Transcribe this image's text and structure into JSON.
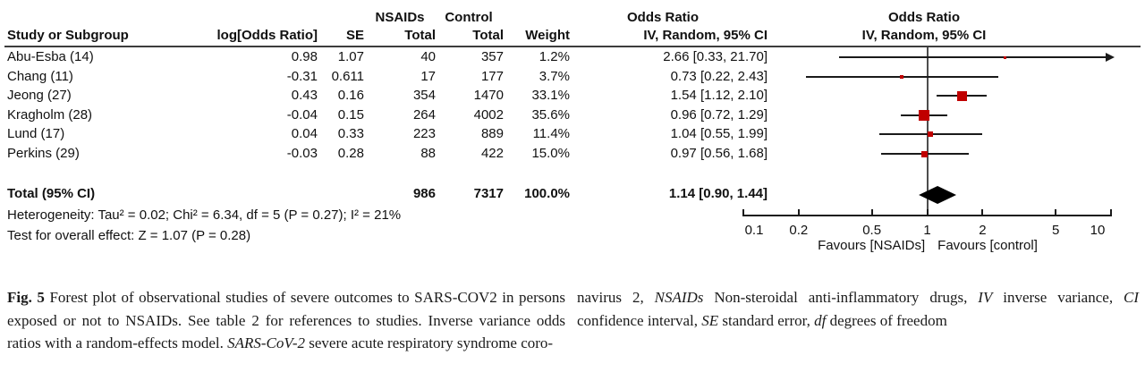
{
  "figure": {
    "table": {
      "study_header": "Study or Subgroup",
      "logor_header": "log[Odds Ratio]",
      "se_header": "SE",
      "group1_header": "NSAIDs",
      "group2_header": "Control",
      "total_header_1": "Total",
      "total_header_2": "Total",
      "weight_header": "Weight",
      "or_header_left": "Odds Ratio",
      "method_header_left": "IV, Random, 95% CI",
      "or_header_right": "Odds Ratio",
      "method_header_right": "IV, Random, 95% CI"
    },
    "stats": {
      "heterogeneity": "Heterogeneity: Tau² = 0.02; Chi² = 6.34, df = 5 (P = 0.27); I² = 21%",
      "overall_effect": "Test for overall effect: Z = 1.07 (P = 0.28)"
    },
    "axis": {
      "tick_labels": [
        "0.1",
        "0.2",
        "0.5",
        "1",
        "2",
        "5",
        "10"
      ],
      "favours_left": "Favours [NSAIDs]",
      "favours_right": "Favours [control]"
    },
    "colors": {
      "marker": "#c00000",
      "diamond": "#000000"
    }
  },
  "chart_data": {
    "type": "scatter",
    "subtype": "forest_plot",
    "title": "Odds Ratio",
    "model": "IV, Random, 95% CI",
    "x_scale": "log10",
    "x_range": [
      0.1,
      10
    ],
    "x_ticks": [
      0.1,
      0.2,
      0.5,
      1,
      2,
      5,
      10
    ],
    "studies": [
      {
        "name": "Abu-Esba (14)",
        "log_or": 0.98,
        "se": 1.07,
        "nsaids_total": 40,
        "control_total": 357,
        "weight": 1.2,
        "or": 2.66,
        "ci_low": 0.33,
        "ci_high": 21.7,
        "or_ci": "2.66 [0.33, 21.70]"
      },
      {
        "name": "Chang (11)",
        "log_or": -0.31,
        "se": 0.611,
        "nsaids_total": 17,
        "control_total": 177,
        "weight": 3.7,
        "or": 0.73,
        "ci_low": 0.22,
        "ci_high": 2.43,
        "or_ci": "0.73 [0.22, 2.43]"
      },
      {
        "name": "Jeong (27)",
        "log_or": 0.43,
        "se": 0.16,
        "nsaids_total": 354,
        "control_total": 1470,
        "weight": 33.1,
        "or": 1.54,
        "ci_low": 1.12,
        "ci_high": 2.1,
        "or_ci": "1.54 [1.12, 2.10]"
      },
      {
        "name": "Kragholm (28)",
        "log_or": -0.04,
        "se": 0.15,
        "nsaids_total": 264,
        "control_total": 4002,
        "weight": 35.6,
        "or": 0.96,
        "ci_low": 0.72,
        "ci_high": 1.29,
        "or_ci": "0.96 [0.72, 1.29]"
      },
      {
        "name": "Lund (17)",
        "log_or": 0.04,
        "se": 0.33,
        "nsaids_total": 223,
        "control_total": 889,
        "weight": 11.4,
        "or": 1.04,
        "ci_low": 0.55,
        "ci_high": 1.99,
        "or_ci": "1.04 [0.55, 1.99]"
      },
      {
        "name": "Perkins (29)",
        "log_or": -0.03,
        "se": 0.28,
        "nsaids_total": 88,
        "control_total": 422,
        "weight": 15.0,
        "or": 0.97,
        "ci_low": 0.56,
        "ci_high": 1.68,
        "or_ci": "0.97 [0.56, 1.68]"
      }
    ],
    "total": {
      "label": "Total (95% CI)",
      "nsaids_total": 986,
      "control_total": 7317,
      "weight": 100.0,
      "or": 1.14,
      "ci_low": 0.9,
      "ci_high": 1.44,
      "or_ci": "1.14 [0.90, 1.44]"
    },
    "heterogeneity": "Heterogeneity: Tau² = 0.02; Chi² = 6.34, df = 5 (P = 0.27); I² = 21%",
    "overall_effect": "Test for overall effect: Z = 1.07 (P = 0.28)",
    "favours_left": "Favours [NSAIDs]",
    "favours_right": "Favours [control]"
  },
  "caption": {
    "left_runs": [
      {
        "text": "Fig. 5",
        "bold": true
      },
      {
        "text": " Forest plot of observational studies of severe outcomes to SARS-COV2 in persons exposed or not to NSAIDs. See table 2 for references to studies. Inverse variance odds ratios with a random-effects model. "
      },
      {
        "text": "SARS-CoV-2",
        "italic": true
      },
      {
        "text": " severe acute respiratory syndrome coro-"
      }
    ],
    "right_runs": [
      {
        "text": "navirus 2, "
      },
      {
        "text": "NSAIDs",
        "italic": true
      },
      {
        "text": " Non-steroidal anti-inflammatory drugs, "
      },
      {
        "text": "IV",
        "italic": true
      },
      {
        "text": " inverse variance, "
      },
      {
        "text": "CI",
        "italic": true
      },
      {
        "text": " confidence interval, "
      },
      {
        "text": "SE",
        "italic": true
      },
      {
        "text": " standard error, "
      },
      {
        "text": "df",
        "italic": true
      },
      {
        "text": " degrees of freedom"
      }
    ]
  }
}
